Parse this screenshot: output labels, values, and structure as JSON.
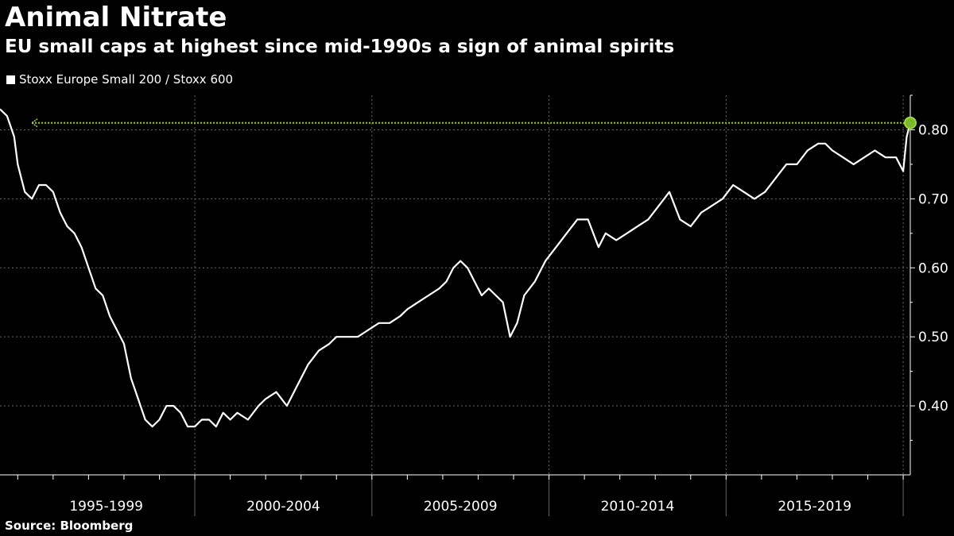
{
  "header": {
    "title": "Animal Nitrate",
    "subtitle": "EU small caps at highest since mid-1990s a sign of animal spirits"
  },
  "footer": {
    "source": "Source: Bloomberg"
  },
  "colors": {
    "background": "#000000",
    "line": "#ffffff",
    "highlight": "#9bd63a",
    "grid": "#666666"
  },
  "chart_data": {
    "type": "line",
    "legend_position": "top-left",
    "grid": true,
    "x_range": [
      1994.5,
      2020.2
    ],
    "ylim": [
      0.3,
      0.85
    ],
    "y_ticks": [
      0.4,
      0.5,
      0.6,
      0.7,
      0.8
    ],
    "y_tick_labels": [
      "0.40",
      "0.50",
      "0.60",
      "0.70",
      "0.80"
    ],
    "x_period_labels": [
      {
        "label": "1995-1999",
        "center": 1997.5
      },
      {
        "label": "2000-2004",
        "center": 2002.5
      },
      {
        "label": "2005-2009",
        "center": 2007.5
      },
      {
        "label": "2010-2014",
        "center": 2012.5
      },
      {
        "label": "2015-2019",
        "center": 2017.5
      }
    ],
    "x_period_boundaries": [
      2000,
      2005,
      2010,
      2015,
      2020
    ],
    "series": [
      {
        "name": "Stoxx Europe Small 200 / Stoxx 600",
        "x": [
          1994.5,
          1994.7,
          1994.9,
          1995.0,
          1995.2,
          1995.4,
          1995.6,
          1995.8,
          1996.0,
          1996.2,
          1996.4,
          1996.6,
          1996.8,
          1997.0,
          1997.2,
          1997.4,
          1997.6,
          1997.8,
          1998.0,
          1998.2,
          1998.4,
          1998.6,
          1998.8,
          1999.0,
          1999.2,
          1999.4,
          1999.6,
          1999.8,
          2000.0,
          2000.2,
          2000.4,
          2000.6,
          2000.8,
          2001.0,
          2001.2,
          2001.5,
          2001.8,
          2002.0,
          2002.3,
          2002.6,
          2002.9,
          2003.2,
          2003.5,
          2003.8,
          2004.0,
          2004.3,
          2004.6,
          2004.9,
          2005.2,
          2005.5,
          2005.8,
          2006.0,
          2006.3,
          2006.6,
          2006.9,
          2007.1,
          2007.3,
          2007.5,
          2007.7,
          2007.9,
          2008.1,
          2008.3,
          2008.5,
          2008.7,
          2008.9,
          2009.1,
          2009.3,
          2009.6,
          2009.9,
          2010.2,
          2010.5,
          2010.8,
          2011.1,
          2011.4,
          2011.6,
          2011.9,
          2012.2,
          2012.5,
          2012.8,
          2013.1,
          2013.4,
          2013.7,
          2014.0,
          2014.3,
          2014.6,
          2014.9,
          2015.2,
          2015.5,
          2015.8,
          2016.1,
          2016.4,
          2016.7,
          2017.0,
          2017.3,
          2017.6,
          2017.8,
          2018.0,
          2018.3,
          2018.6,
          2018.9,
          2019.2,
          2019.5,
          2019.8,
          2020.0,
          2020.1,
          2020.2
        ],
        "values": [
          0.83,
          0.82,
          0.79,
          0.75,
          0.71,
          0.7,
          0.72,
          0.72,
          0.71,
          0.68,
          0.66,
          0.65,
          0.63,
          0.6,
          0.57,
          0.56,
          0.53,
          0.51,
          0.49,
          0.44,
          0.41,
          0.38,
          0.37,
          0.38,
          0.4,
          0.4,
          0.39,
          0.37,
          0.37,
          0.38,
          0.38,
          0.37,
          0.39,
          0.38,
          0.39,
          0.38,
          0.4,
          0.41,
          0.42,
          0.4,
          0.43,
          0.46,
          0.48,
          0.49,
          0.5,
          0.5,
          0.5,
          0.51,
          0.52,
          0.52,
          0.53,
          0.54,
          0.55,
          0.56,
          0.57,
          0.58,
          0.6,
          0.61,
          0.6,
          0.58,
          0.56,
          0.57,
          0.56,
          0.55,
          0.5,
          0.52,
          0.56,
          0.58,
          0.61,
          0.63,
          0.65,
          0.67,
          0.67,
          0.63,
          0.65,
          0.64,
          0.65,
          0.66,
          0.67,
          0.69,
          0.71,
          0.67,
          0.66,
          0.68,
          0.69,
          0.7,
          0.72,
          0.71,
          0.7,
          0.71,
          0.73,
          0.75,
          0.75,
          0.77,
          0.78,
          0.78,
          0.77,
          0.76,
          0.75,
          0.76,
          0.77,
          0.76,
          0.76,
          0.74,
          0.79,
          0.81
        ]
      }
    ],
    "highlight": {
      "value": 0.81,
      "x": 2020.2
    }
  }
}
